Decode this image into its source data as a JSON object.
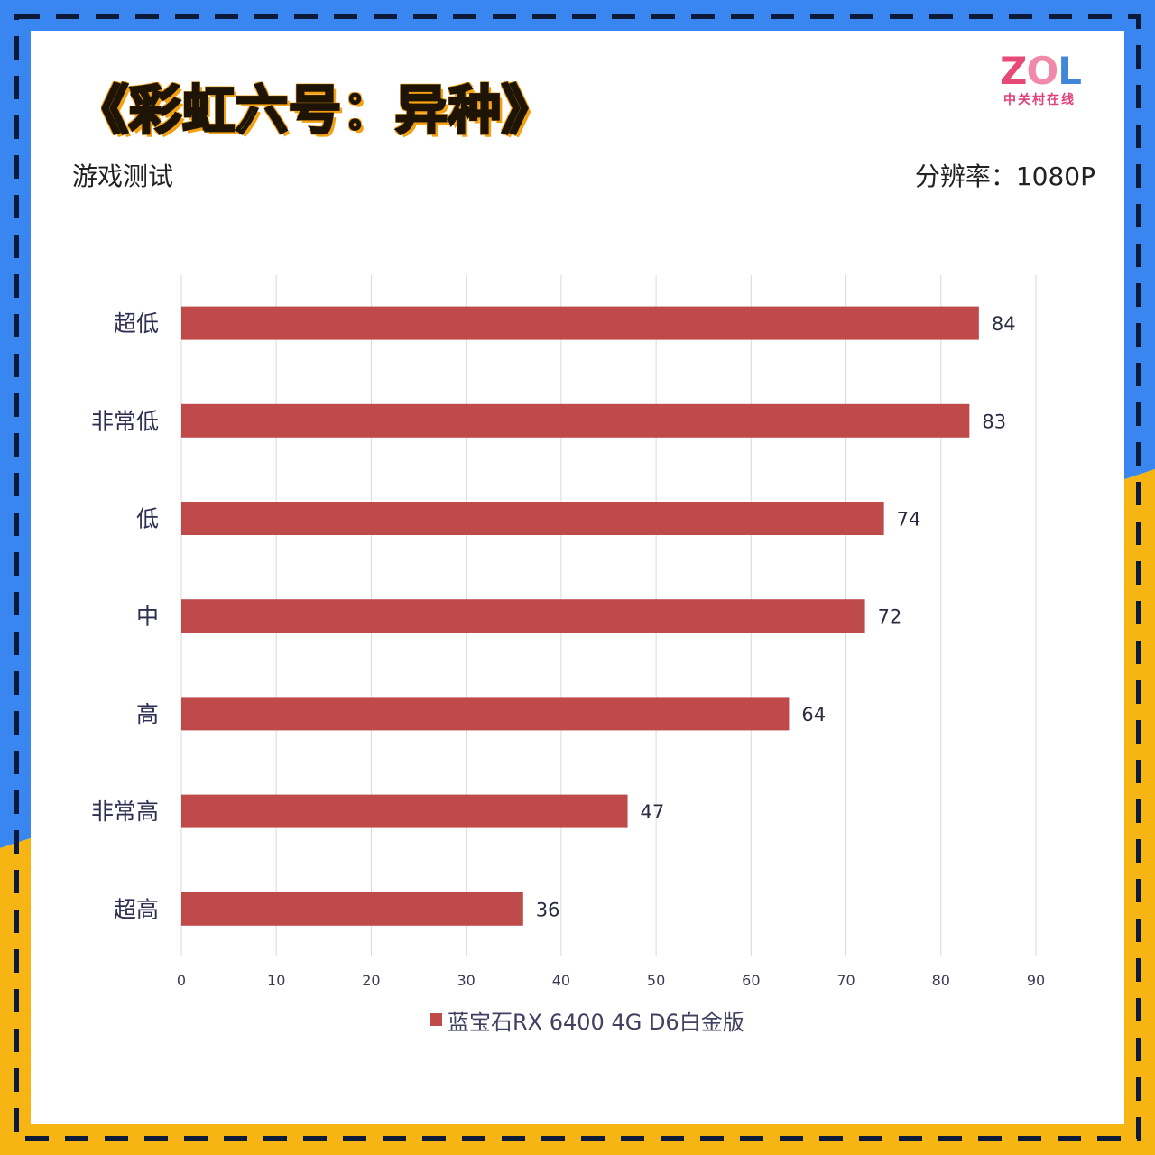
{
  "page": {
    "title": "《彩虹六号：异种》",
    "subtitle_left": "游戏测试",
    "subtitle_right": "分辨率：1080P",
    "logo": {
      "brand": "ZOL",
      "sub": "中关村在线"
    }
  },
  "colors": {
    "border_blue": "#3a86f0",
    "border_yellow": "#f7b514",
    "bar": "#bf4a4a",
    "grid": "#d9d9d9",
    "tick_text": "#3a3a5a"
  },
  "chart_data": {
    "type": "bar",
    "orientation": "horizontal",
    "categories": [
      "超低",
      "非常低",
      "低",
      "中",
      "高",
      "非常高",
      "超高"
    ],
    "series": [
      {
        "name": "蓝宝石RX 6400 4G D6白金版",
        "values": [
          84,
          83,
          74,
          72,
          64,
          47,
          36
        ]
      }
    ],
    "xlim": [
      0,
      90
    ],
    "xticks": [
      0,
      10,
      20,
      30,
      40,
      50,
      60,
      70,
      80,
      90
    ],
    "grid": true,
    "legend_position": "bottom",
    "data_labels": true
  }
}
